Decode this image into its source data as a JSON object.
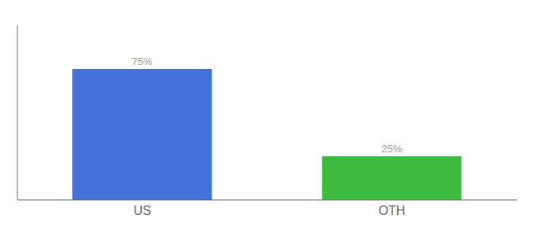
{
  "chart_data": {
    "type": "bar",
    "categories": [
      "US",
      "OTH"
    ],
    "values": [
      75,
      25
    ],
    "value_labels": [
      "75%",
      "25%"
    ],
    "colors": [
      "#4472db",
      "#3dbb3d"
    ],
    "ylim": [
      0,
      100
    ],
    "data_labels": true,
    "tick_labels": "x",
    "grid": false
  }
}
